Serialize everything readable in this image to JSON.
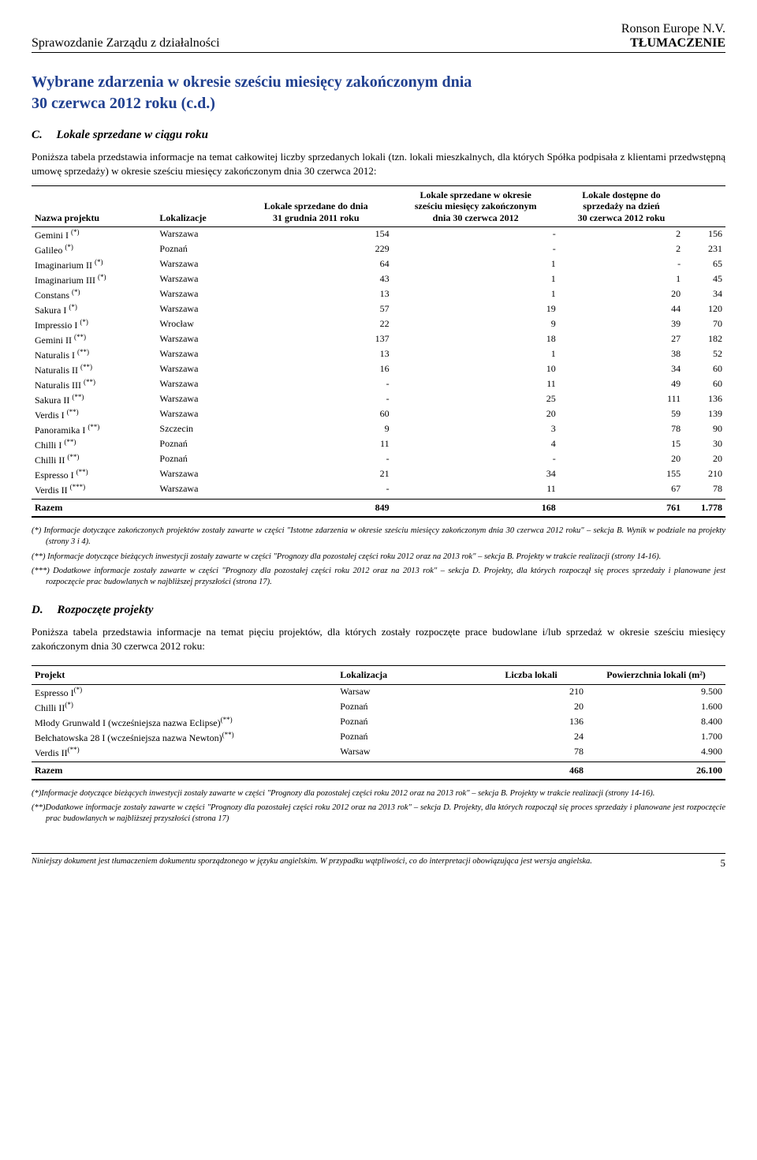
{
  "header": {
    "left": "Sprawozdanie Zarządu z działalności",
    "right_top": "Ronson Europe N.V.",
    "right_bottom": "TŁUMACZENIE"
  },
  "main_title_l1": "Wybrane zdarzenia w okresie sześciu miesięcy zakończonym dnia",
  "main_title_l2": "30 czerwca 2012 roku (c.d.)",
  "section_c": {
    "letter": "C.",
    "title": "Lokale sprzedane w ciągu roku",
    "para": "Poniższa tabela przedstawia informacje na temat całkowitej liczby sprzedanych lokali (tzn. lokali mieszkalnych, dla których Spółka podpisała z klientami przedwstępną umowę sprzedaży) w okresie sześciu miesięcy zakończonym dnia 30 czerwca 2012:",
    "columns": {
      "c1": "Nazwa projektu",
      "c2": "Lokalizacje",
      "c3_l1": "Lokale sprzedane do dnia",
      "c3_l2": "31 grudnia 2011 roku",
      "c4_l1": "Lokale sprzedane w okresie",
      "c4_l2": "sześciu miesięcy zakończonym",
      "c4_l3": "dnia 30 czerwca 2012",
      "c5_l1": "Lokale dostępne do",
      "c5_l2": "sprzedaży na dzień",
      "c5_l3": "30 czerwca 2012 roku",
      "c6": ""
    },
    "rows": [
      {
        "proj": "Gemini I",
        "sup": "(*)",
        "loc": "Warszawa",
        "c3": "154",
        "c4": "-",
        "c5": "2",
        "c6": "156"
      },
      {
        "proj": "Galileo",
        "sup": "(*)",
        "loc": "Poznań",
        "c3": "229",
        "c4": "-",
        "c5": "2",
        "c6": "231"
      },
      {
        "proj": "Imaginarium II",
        "sup": "(*)",
        "loc": "Warszawa",
        "c3": "64",
        "c4": "1",
        "c5": "-",
        "c6": "65"
      },
      {
        "proj": "Imaginarium III",
        "sup": "(*)",
        "loc": "Warszawa",
        "c3": "43",
        "c4": "1",
        "c5": "1",
        "c6": "45"
      },
      {
        "proj": "Constans",
        "sup": "(*)",
        "loc": "Warszawa",
        "c3": "13",
        "c4": "1",
        "c5": "20",
        "c6": "34"
      },
      {
        "proj": "Sakura I",
        "sup": "(*)",
        "loc": "Warszawa",
        "c3": "57",
        "c4": "19",
        "c5": "44",
        "c6": "120"
      },
      {
        "proj": "Impressio I",
        "sup": "(*)",
        "loc": "Wrocław",
        "c3": "22",
        "c4": "9",
        "c5": "39",
        "c6": "70"
      },
      {
        "proj": "Gemini II",
        "sup": "(**)",
        "loc": "Warszawa",
        "c3": "137",
        "c4": "18",
        "c5": "27",
        "c6": "182"
      },
      {
        "proj": "Naturalis I",
        "sup": "(**)",
        "loc": "Warszawa",
        "c3": "13",
        "c4": "1",
        "c5": "38",
        "c6": "52"
      },
      {
        "proj": "Naturalis II",
        "sup": "(**)",
        "loc": "Warszawa",
        "c3": "16",
        "c4": "10",
        "c5": "34",
        "c6": "60"
      },
      {
        "proj": "Naturalis III",
        "sup": "(**)",
        "loc": "Warszawa",
        "c3": "-",
        "c4": "11",
        "c5": "49",
        "c6": "60"
      },
      {
        "proj": "Sakura II",
        "sup": "(**)",
        "loc": "Warszawa",
        "c3": "-",
        "c4": "25",
        "c5": "111",
        "c6": "136"
      },
      {
        "proj": "Verdis I",
        "sup": "(**)",
        "loc": "Warszawa",
        "c3": "60",
        "c4": "20",
        "c5": "59",
        "c6": "139"
      },
      {
        "proj": "Panoramika I",
        "sup": "(**)",
        "loc": "Szczecin",
        "c3": "9",
        "c4": "3",
        "c5": "78",
        "c6": "90"
      },
      {
        "proj": "Chilli I",
        "sup": "(**)",
        "loc": "Poznań",
        "c3": "11",
        "c4": "4",
        "c5": "15",
        "c6": "30"
      },
      {
        "proj": "Chilli II",
        "sup": "(**)",
        "loc": "Poznań",
        "c3": "-",
        "c4": "-",
        "c5": "20",
        "c6": "20"
      },
      {
        "proj": "Espresso I",
        "sup": "(**)",
        "loc": "Warszawa",
        "c3": "21",
        "c4": "34",
        "c5": "155",
        "c6": "210"
      },
      {
        "proj": "Verdis II",
        "sup": "(***)",
        "loc": "Warszawa",
        "c3": "-",
        "c4": "11",
        "c5": "67",
        "c6": "78"
      }
    ],
    "total": {
      "label": "Razem",
      "c3": "849",
      "c4": "168",
      "c5": "761",
      "c6": "1.778"
    },
    "footnotes": [
      "(*) Informacje dotyczące zakończonych projektów zostały zawarte w części \"Istotne zdarzenia w okresie sześciu miesięcy zakończonym dnia 30 czerwca 2012 roku\" – sekcja B. Wynik w podziale na projekty (strony 3 i 4).",
      "(**) Informacje dotyczące bieżących inwestycji zostały zawarte w części \"Prognozy dla pozostałej części roku 2012 oraz na 2013 rok\" – sekcja B. Projekty w trakcie realizacji (strony 14-16).",
      "(***) Dodatkowe informacje zostały zawarte w części \"Prognozy dla pozostałej części roku 2012 oraz na 2013 rok\" – sekcja D. Projekty, dla których rozpoczął się proces sprzedaży i planowane jest rozpoczęcie prac budowlanych w najbliższej przyszłości (strona 17)."
    ]
  },
  "section_d": {
    "letter": "D.",
    "title": "Rozpoczęte projekty",
    "para": "Poniższa tabela przedstawia informacje na temat pięciu projektów, dla których zostały rozpoczęte prace budowlane i/lub sprzedaż w okresie sześciu miesięcy zakończonym dnia 30 czerwca 2012 roku:",
    "columns": {
      "c1": "Projekt",
      "c2": "Lokalizacja",
      "c3": "Liczba lokali",
      "c4": "Powierzchnia lokali (m²)"
    },
    "rows": [
      {
        "proj": "Espresso I",
        "sup": "(*)",
        "loc": "Warsaw",
        "c3": "210",
        "c4": "9.500"
      },
      {
        "proj": "Chilli II",
        "sup": "(*)",
        "loc": "Poznań",
        "c3": "20",
        "c4": "1.600"
      },
      {
        "proj": "Młody Grunwald I (wcześniejsza nazwa Eclipse)",
        "sup": "(**)",
        "loc": "Poznań",
        "c3": "136",
        "c4": "8.400"
      },
      {
        "proj": "Bełchatowska 28 I (wcześniejsza nazwa Newton)",
        "sup": "(**)",
        "loc": "Poznań",
        "c3": "24",
        "c4": "1.700"
      },
      {
        "proj": "Verdis II",
        "sup": "(**)",
        "loc": "Warsaw",
        "c3": "78",
        "c4": "4.900"
      }
    ],
    "total": {
      "label": "Razem",
      "c3": "468",
      "c4": "26.100"
    },
    "footnotes": [
      "(*)Informacje dotyczące bieżących inwestycji zostały zawarte w części \"Prognozy dla pozostałej części roku 2012 oraz na 2013 rok\" – sekcja B. Projekty w trakcie realizacji (strony 14-16).",
      "(**)Dodatkowe informacje zostały zawarte w części \"Prognozy dla pozostałej części roku 2012 oraz na 2013 rok\" – sekcja D. Projekty, dla których rozpoczął się proces sprzedaży i planowane jest rozpoczęcie prac budowlanych w najbliższej przyszłości (strona 17)"
    ]
  },
  "footer": {
    "text": "Niniejszy dokument jest tłumaczeniem dokumentu sporządzonego w języku angielskim. W przypadku wątpliwości, co do interpretacji obowiązująca jest wersja angielska.",
    "page": "5"
  },
  "style": {
    "title_color": "#1f3f8f",
    "background": "#ffffff"
  }
}
